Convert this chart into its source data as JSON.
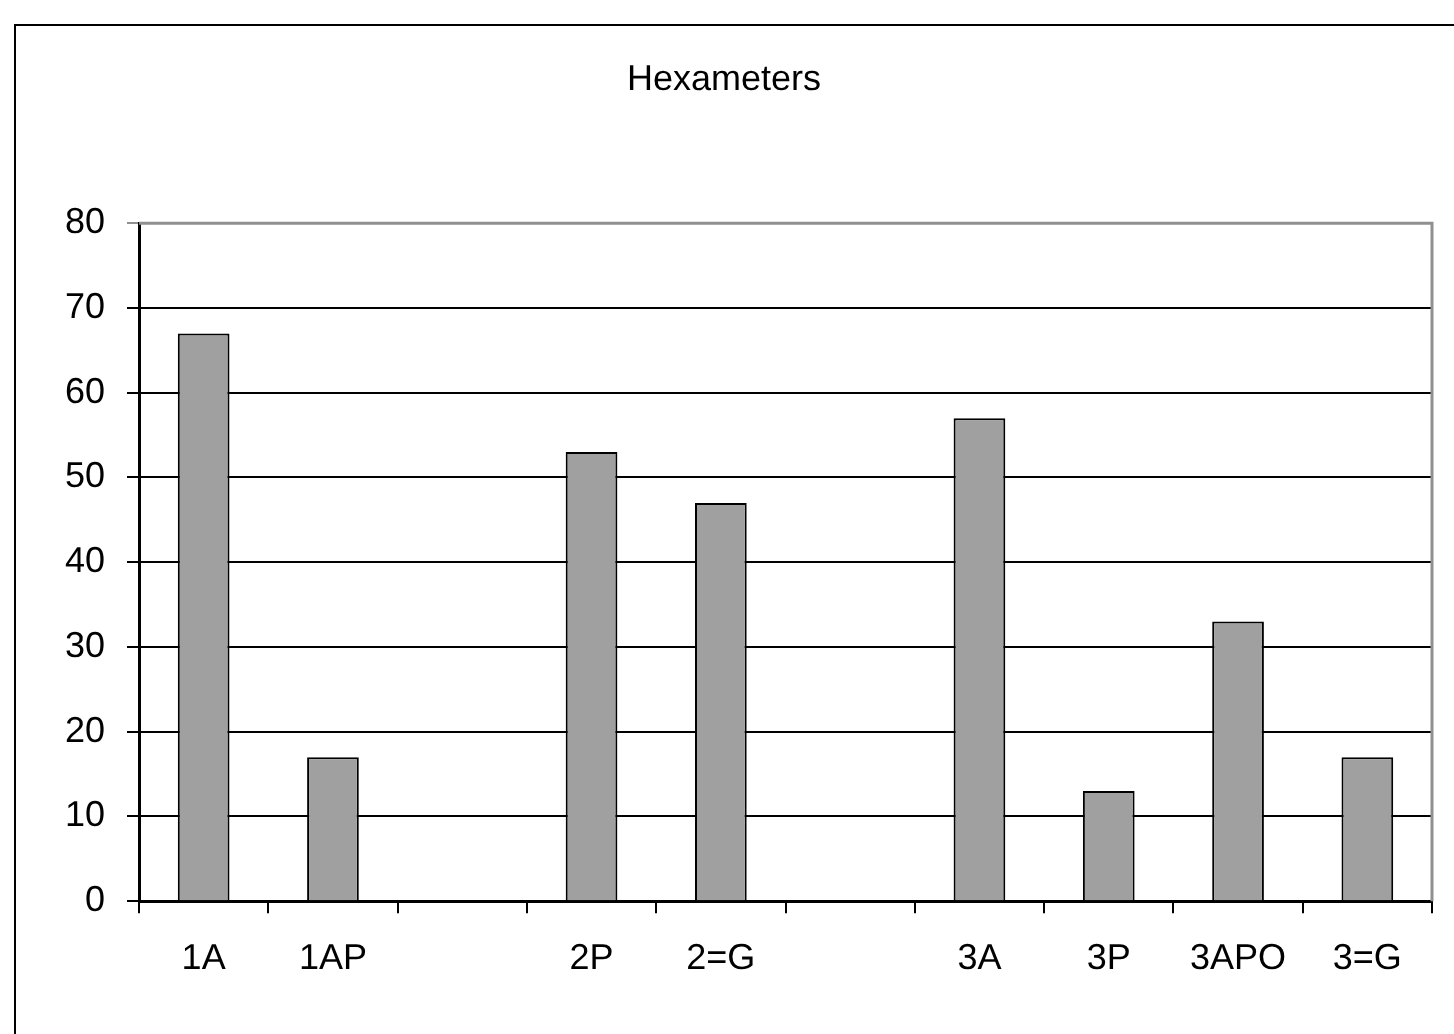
{
  "chart_data": {
    "type": "bar",
    "title": "Hexameters",
    "categories": [
      "1A",
      "1AP",
      null,
      "2P",
      "2=G",
      null,
      "3A",
      "3P",
      "3APO",
      "3=G"
    ],
    "values": [
      67,
      17,
      null,
      53,
      47,
      null,
      57,
      13,
      33,
      17
    ],
    "color": "#a0a0a0",
    "ylim": [
      0,
      80
    ],
    "yticks": [
      0,
      10,
      20,
      30,
      40,
      50,
      60,
      70,
      80
    ],
    "grid": "y",
    "legend": false
  }
}
